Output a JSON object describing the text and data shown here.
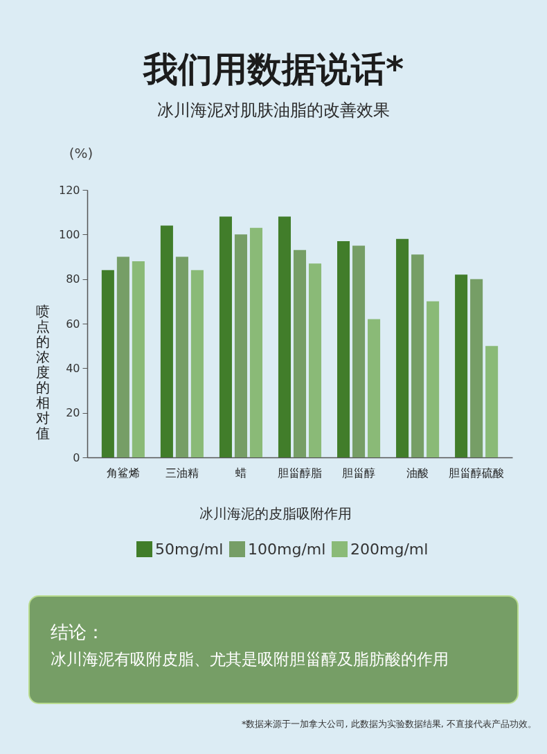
{
  "chart_data": {
    "type": "bar",
    "title": "我们用数据说话*",
    "subtitle": "冰川海泥对肌肤油脂的改善效果",
    "ylabel": "喷点的浓度的相对值",
    "xlabel": "冰川海泥的皮脂吸附作用",
    "categories": [
      "角鲨烯",
      "三油精",
      "蜡",
      "胆甾醇脂",
      "胆甾醇",
      "油酸",
      "胆甾醇硫酸"
    ],
    "series": [
      {
        "name": "50mg/ml",
        "color": "#417d2a",
        "values": [
          84,
          104,
          108,
          108,
          97,
          98,
          82
        ]
      },
      {
        "name": "100mg/ml",
        "color": "#769e66",
        "values": [
          90,
          90,
          100,
          93,
          95,
          91,
          80
        ]
      },
      {
        "name": "200mg/ml",
        "color": "#8aba77",
        "values": [
          88,
          84,
          103,
          87,
          62,
          70,
          50
        ]
      }
    ],
    "ylim": [
      0,
      120
    ],
    "yticks": [
      0,
      20,
      40,
      60,
      80,
      100,
      120
    ],
    "legend": "bottom",
    "annotations": [
      "(%)",
      "结论：",
      "冰川海泥有吸附皮脂、尤其是吸附胆甾醇及脂肪酸的作用",
      "*数据来源于一加拿大公司, 此数据为实验数据结果, 不直接代表产品功效。"
    ]
  }
}
